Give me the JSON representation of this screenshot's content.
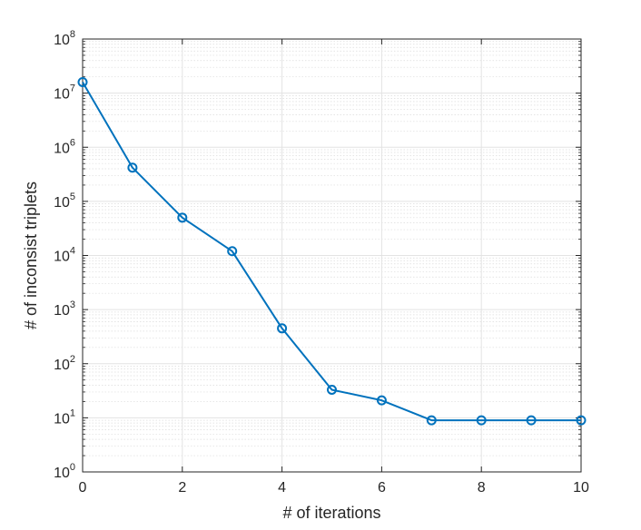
{
  "chart_data": {
    "type": "line",
    "xlabel": "# of iterations",
    "ylabel": "# of inconsist triplets",
    "xlim": [
      0,
      10
    ],
    "ylim": [
      1,
      100000000
    ],
    "yscale": "log",
    "xticks": [
      "0",
      "2",
      "4",
      "6",
      "8",
      "10"
    ],
    "yticks": [
      {
        "base": "10",
        "exp": "0"
      },
      {
        "base": "10",
        "exp": "1"
      },
      {
        "base": "10",
        "exp": "2"
      },
      {
        "base": "10",
        "exp": "3"
      },
      {
        "base": "10",
        "exp": "4"
      },
      {
        "base": "10",
        "exp": "5"
      },
      {
        "base": "10",
        "exp": "6"
      },
      {
        "base": "10",
        "exp": "7"
      },
      {
        "base": "10",
        "exp": "8"
      }
    ],
    "grid": true,
    "minor_grid": true,
    "legend": "none",
    "marker": "circle",
    "series": [
      {
        "color": "#0072BD",
        "x": [
          0,
          1,
          2,
          3,
          4,
          5,
          6,
          7,
          8,
          9,
          10
        ],
        "y": [
          16000000,
          420000,
          50000,
          12000,
          450,
          33,
          21,
          9,
          9,
          9,
          9
        ]
      }
    ]
  }
}
